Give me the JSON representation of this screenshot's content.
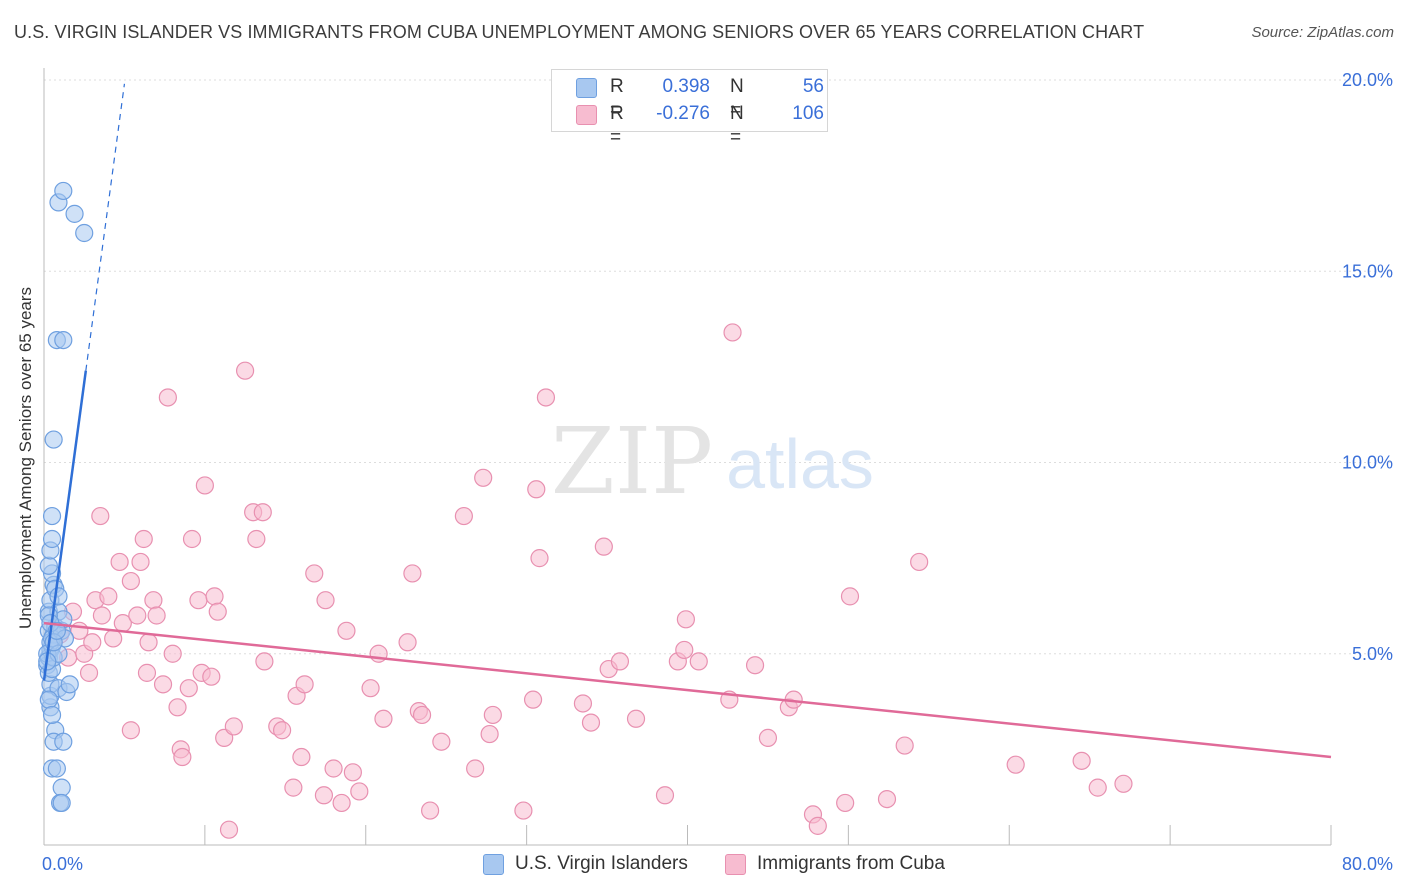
{
  "title": "U.S. VIRGIN ISLANDER VS IMMIGRANTS FROM CUBA UNEMPLOYMENT AMONG SENIORS OVER 65 YEARS CORRELATION CHART",
  "source": "Source: ZipAtlas.com",
  "watermark": {
    "zip": "ZIP",
    "atlas": "atlas"
  },
  "legend": {
    "rows": [
      {
        "r_label": "R =",
        "r_value": "0.398",
        "n_label": "N =",
        "n_value": "56",
        "color": "#a8c8f0",
        "border": "#6fa0e0"
      },
      {
        "r_label": "R =",
        "r_value": "-0.276",
        "n_label": "N =",
        "n_value": "106",
        "color": "#f7bcd0",
        "border": "#e890b0"
      }
    ]
  },
  "bottom_legend": {
    "items": [
      {
        "label": "U.S. Virgin Islanders",
        "color": "#a8c8f0",
        "border": "#6fa0e0"
      },
      {
        "label": "Immigrants from Cuba",
        "color": "#f7bcd0",
        "border": "#e890b0"
      }
    ]
  },
  "chart_data": {
    "type": "scatter",
    "title": "U.S. VIRGIN ISLANDER VS IMMIGRANTS FROM CUBA UNEMPLOYMENT AMONG SENIORS OVER 65 YEARS CORRELATION CHART",
    "xlabel": "",
    "ylabel": "Unemployment Among Seniors over 65 years",
    "xlim": [
      0,
      80
    ],
    "ylim": [
      0,
      20
    ],
    "x_tick_labels": [
      "0.0%",
      "80.0%"
    ],
    "y_ticks": [
      5,
      10,
      15,
      20
    ],
    "y_tick_labels": [
      "5.0%",
      "10.0%",
      "15.0%",
      "20.0%"
    ],
    "series": [
      {
        "name": "U.S. Virgin Islanders",
        "color": "#a8c8f0",
        "border": "#6fa0e0",
        "line_color": "#2f6fd6",
        "trend": {
          "x0": 0.0,
          "y0": 4.3,
          "x1": 2.6,
          "y1": 12.4,
          "dash_to_x": 5.0,
          "dash_to_y": 19.9
        },
        "points": [
          [
            0.2,
            4.7
          ],
          [
            0.3,
            4.9
          ],
          [
            0.4,
            5.1
          ],
          [
            0.3,
            5.6
          ],
          [
            0.5,
            5.2
          ],
          [
            0.6,
            5.5
          ],
          [
            0.4,
            5.3
          ],
          [
            0.2,
            5.0
          ],
          [
            0.7,
            5.7
          ],
          [
            0.5,
            5.4
          ],
          [
            0.3,
            6.1
          ],
          [
            0.4,
            6.4
          ],
          [
            0.6,
            6.8
          ],
          [
            0.5,
            7.1
          ],
          [
            0.3,
            7.3
          ],
          [
            0.4,
            7.7
          ],
          [
            0.5,
            8.0
          ],
          [
            0.5,
            8.6
          ],
          [
            0.6,
            10.6
          ],
          [
            0.8,
            13.2
          ],
          [
            1.2,
            13.2
          ],
          [
            0.9,
            16.8
          ],
          [
            1.2,
            17.1
          ],
          [
            1.9,
            16.5
          ],
          [
            2.5,
            16.0
          ],
          [
            0.4,
            3.6
          ],
          [
            0.4,
            3.9
          ],
          [
            0.4,
            4.2
          ],
          [
            0.3,
            4.5
          ],
          [
            0.7,
            3.0
          ],
          [
            0.6,
            2.7
          ],
          [
            1.2,
            2.7
          ],
          [
            0.5,
            2.0
          ],
          [
            0.8,
            2.0
          ],
          [
            1.1,
            1.5
          ],
          [
            1.0,
            1.1
          ],
          [
            1.1,
            1.1
          ],
          [
            0.9,
            4.1
          ],
          [
            1.4,
            4.0
          ],
          [
            1.6,
            4.2
          ],
          [
            1.1,
            5.6
          ],
          [
            1.3,
            5.4
          ],
          [
            0.9,
            6.1
          ],
          [
            1.2,
            5.9
          ],
          [
            0.7,
            6.7
          ],
          [
            0.3,
            6.0
          ],
          [
            0.5,
            4.6
          ],
          [
            0.6,
            4.9
          ],
          [
            0.9,
            5.0
          ],
          [
            0.4,
            5.8
          ],
          [
            0.6,
            5.3
          ],
          [
            0.8,
            5.6
          ],
          [
            0.2,
            4.8
          ],
          [
            0.3,
            3.8
          ],
          [
            0.5,
            3.4
          ],
          [
            0.9,
            6.5
          ]
        ]
      },
      {
        "name": "Immigrants from Cuba",
        "color": "#f7bcd0",
        "border": "#e890b0",
        "line_color": "#e06a98",
        "trend": {
          "x0": 0.0,
          "y0": 5.8,
          "x1": 80.0,
          "y1": 2.3
        },
        "points": [
          [
            1.0,
            5.5
          ],
          [
            1.5,
            4.9
          ],
          [
            2.5,
            5.0
          ],
          [
            3.2,
            6.4
          ],
          [
            3.5,
            8.6
          ],
          [
            3.6,
            6.0
          ],
          [
            2.8,
            4.5
          ],
          [
            4.0,
            6.5
          ],
          [
            4.7,
            7.4
          ],
          [
            5.4,
            3.0
          ],
          [
            4.9,
            5.8
          ],
          [
            5.4,
            6.9
          ],
          [
            5.8,
            6.0
          ],
          [
            6.0,
            7.4
          ],
          [
            6.5,
            5.3
          ],
          [
            6.2,
            8.0
          ],
          [
            6.4,
            4.5
          ],
          [
            6.8,
            6.4
          ],
          [
            7.0,
            6.0
          ],
          [
            7.4,
            4.2
          ],
          [
            7.7,
            11.7
          ],
          [
            8.0,
            5.0
          ],
          [
            8.3,
            3.6
          ],
          [
            8.5,
            2.5
          ],
          [
            8.6,
            2.3
          ],
          [
            9.0,
            4.1
          ],
          [
            9.2,
            8.0
          ],
          [
            9.6,
            6.4
          ],
          [
            9.8,
            4.5
          ],
          [
            10.0,
            9.4
          ],
          [
            10.4,
            4.4
          ],
          [
            10.6,
            6.5
          ],
          [
            10.8,
            6.1
          ],
          [
            11.2,
            2.8
          ],
          [
            11.5,
            0.4
          ],
          [
            11.8,
            3.1
          ],
          [
            12.5,
            12.4
          ],
          [
            13.0,
            8.7
          ],
          [
            13.2,
            8.0
          ],
          [
            13.6,
            8.7
          ],
          [
            13.7,
            4.8
          ],
          [
            14.5,
            3.1
          ],
          [
            14.8,
            3.0
          ],
          [
            15.5,
            1.5
          ],
          [
            15.7,
            3.9
          ],
          [
            16.0,
            2.3
          ],
          [
            16.2,
            4.2
          ],
          [
            16.8,
            7.1
          ],
          [
            17.4,
            1.3
          ],
          [
            17.5,
            6.4
          ],
          [
            18.0,
            2.0
          ],
          [
            18.5,
            1.1
          ],
          [
            18.8,
            5.6
          ],
          [
            19.2,
            1.9
          ],
          [
            19.6,
            1.4
          ],
          [
            20.3,
            4.1
          ],
          [
            20.8,
            5.0
          ],
          [
            21.1,
            3.3
          ],
          [
            22.6,
            5.3
          ],
          [
            22.9,
            7.1
          ],
          [
            23.3,
            3.5
          ],
          [
            23.5,
            3.4
          ],
          [
            24.0,
            0.9
          ],
          [
            24.7,
            2.7
          ],
          [
            26.1,
            8.6
          ],
          [
            26.8,
            2.0
          ],
          [
            27.3,
            9.6
          ],
          [
            27.9,
            3.4
          ],
          [
            27.7,
            2.9
          ],
          [
            29.8,
            0.9
          ],
          [
            30.4,
            3.8
          ],
          [
            30.6,
            9.3
          ],
          [
            30.8,
            7.5
          ],
          [
            31.2,
            11.7
          ],
          [
            33.5,
            3.7
          ],
          [
            34.0,
            3.2
          ],
          [
            34.8,
            7.8
          ],
          [
            35.1,
            4.6
          ],
          [
            35.8,
            4.8
          ],
          [
            36.8,
            3.3
          ],
          [
            38.6,
            1.3
          ],
          [
            39.4,
            4.8
          ],
          [
            39.8,
            5.1
          ],
          [
            39.9,
            5.9
          ],
          [
            40.7,
            4.8
          ],
          [
            42.6,
            3.8
          ],
          [
            42.8,
            13.4
          ],
          [
            44.2,
            4.7
          ],
          [
            45.0,
            2.8
          ],
          [
            46.3,
            3.6
          ],
          [
            46.6,
            3.8
          ],
          [
            47.8,
            0.8
          ],
          [
            48.1,
            0.5
          ],
          [
            50.1,
            6.5
          ],
          [
            49.8,
            1.1
          ],
          [
            52.4,
            1.2
          ],
          [
            53.5,
            2.6
          ],
          [
            54.4,
            7.4
          ],
          [
            60.4,
            2.1
          ],
          [
            64.5,
            2.2
          ],
          [
            65.5,
            1.5
          ],
          [
            67.1,
            1.6
          ],
          [
            4.3,
            5.4
          ],
          [
            3.0,
            5.3
          ],
          [
            2.2,
            5.6
          ],
          [
            1.8,
            6.1
          ]
        ]
      }
    ]
  }
}
